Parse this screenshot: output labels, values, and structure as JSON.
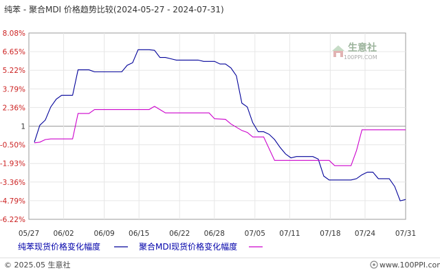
{
  "chart_data": {
    "type": "line",
    "title": "纯苯 - 聚合MDI 价格趋势比较(2024-05-27 - 2024-07-31)",
    "y_ticks": [
      "8.08%",
      "6.65%",
      "5.22%",
      "3.79%",
      "2.36%",
      "1",
      "-0.50%",
      "-1.93%",
      "-3.36%",
      "-4.79%",
      "-6.22%"
    ],
    "x_ticks": [
      "05/27",
      "06/02",
      "06/09",
      "06/15",
      "06/22",
      "06/28",
      "07/05",
      "07/11",
      "07/18",
      "07/24",
      "07/31"
    ],
    "x_range": [
      "2024-05-27",
      "2024-07-31"
    ],
    "ylim": [
      -6.22,
      8.08
    ],
    "grid": true,
    "reference_line": 0.93,
    "legend_position": "bottom",
    "series": [
      {
        "name": "纯苯现货价格变化幅度",
        "color": "#000099",
        "points": [
          [
            "2024-05-27",
            -0.3
          ],
          [
            "2024-05-28",
            1.0
          ],
          [
            "2024-05-29",
            1.4
          ],
          [
            "2024-05-30",
            2.4
          ],
          [
            "2024-05-31",
            3.0
          ],
          [
            "2024-06-01",
            3.3
          ],
          [
            "2024-06-02",
            3.3
          ],
          [
            "2024-06-03",
            3.3
          ],
          [
            "2024-06-04",
            5.25
          ],
          [
            "2024-06-06",
            5.25
          ],
          [
            "2024-06-07",
            5.1
          ],
          [
            "2024-06-12",
            5.1
          ],
          [
            "2024-06-13",
            5.6
          ],
          [
            "2024-06-14",
            5.8
          ],
          [
            "2024-06-15",
            6.8
          ],
          [
            "2024-06-17",
            6.8
          ],
          [
            "2024-06-18",
            6.75
          ],
          [
            "2024-06-19",
            6.2
          ],
          [
            "2024-06-20",
            6.2
          ],
          [
            "2024-06-21",
            6.1
          ],
          [
            "2024-06-22",
            6.0
          ],
          [
            "2024-06-26",
            6.0
          ],
          [
            "2024-06-27",
            5.9
          ],
          [
            "2024-06-29",
            5.9
          ],
          [
            "2024-06-30",
            5.7
          ],
          [
            "2024-07-01",
            5.7
          ],
          [
            "2024-07-02",
            5.4
          ],
          [
            "2024-07-03",
            4.8
          ],
          [
            "2024-07-04",
            2.7
          ],
          [
            "2024-07-05",
            2.4
          ],
          [
            "2024-07-06",
            1.2
          ],
          [
            "2024-07-07",
            0.5
          ],
          [
            "2024-07-08",
            0.5
          ],
          [
            "2024-07-09",
            0.3
          ],
          [
            "2024-07-10",
            -0.1
          ],
          [
            "2024-07-11",
            -0.7
          ],
          [
            "2024-07-12",
            -1.2
          ],
          [
            "2024-07-13",
            -1.5
          ],
          [
            "2024-07-14",
            -1.4
          ],
          [
            "2024-07-16",
            -1.4
          ],
          [
            "2024-07-17",
            -1.4
          ],
          [
            "2024-07-18",
            -1.6
          ],
          [
            "2024-07-19",
            -2.9
          ],
          [
            "2024-07-20",
            -3.2
          ],
          [
            "2024-07-21",
            -3.2
          ],
          [
            "2024-07-24",
            -3.2
          ],
          [
            "2024-07-25",
            -3.1
          ],
          [
            "2024-07-26",
            -2.8
          ],
          [
            "2024-07-27",
            -2.6
          ],
          [
            "2024-07-28",
            -2.6
          ],
          [
            "2024-07-29",
            -3.1
          ],
          [
            "2024-07-30",
            -3.1
          ],
          [
            "2024-07-31",
            -3.1
          ],
          [
            "2024-08-01",
            -3.7
          ],
          [
            "2024-08-02",
            -4.8
          ],
          [
            "2024-08-03",
            -4.7
          ]
        ]
      },
      {
        "name": "聚合MDI现货价格变化幅度",
        "color": "#cc00cc",
        "points": [
          [
            "2024-05-27",
            -0.35
          ],
          [
            "2024-05-28",
            -0.3
          ],
          [
            "2024-05-29",
            -0.1
          ],
          [
            "2024-05-30",
            -0.05
          ],
          [
            "2024-06-02",
            -0.05
          ],
          [
            "2024-06-03",
            -0.05
          ],
          [
            "2024-06-04",
            1.9
          ],
          [
            "2024-06-06",
            1.9
          ],
          [
            "2024-06-07",
            2.2
          ],
          [
            "2024-06-17",
            2.2
          ],
          [
            "2024-06-18",
            2.45
          ],
          [
            "2024-06-19",
            2.2
          ],
          [
            "2024-06-20",
            1.95
          ],
          [
            "2024-06-28",
            1.95
          ],
          [
            "2024-06-29",
            1.5
          ],
          [
            "2024-07-01",
            1.45
          ],
          [
            "2024-07-02",
            1.1
          ],
          [
            "2024-07-04",
            0.6
          ],
          [
            "2024-07-05",
            0.45
          ],
          [
            "2024-07-06",
            0.1
          ],
          [
            "2024-07-07",
            0.1
          ],
          [
            "2024-07-08",
            0.1
          ],
          [
            "2024-07-10",
            -1.7
          ],
          [
            "2024-07-20",
            -1.7
          ],
          [
            "2024-07-21",
            -2.1
          ],
          [
            "2024-07-24",
            -2.1
          ],
          [
            "2024-07-25",
            -0.95
          ],
          [
            "2024-07-26",
            0.65
          ],
          [
            "2024-08-03",
            0.65
          ]
        ]
      }
    ]
  },
  "watermark": {
    "brand": "生意社",
    "url": "100PPI.COM"
  },
  "footer": {
    "left": "© 2025.05 生意社",
    "right": "www.100PPI.com"
  }
}
